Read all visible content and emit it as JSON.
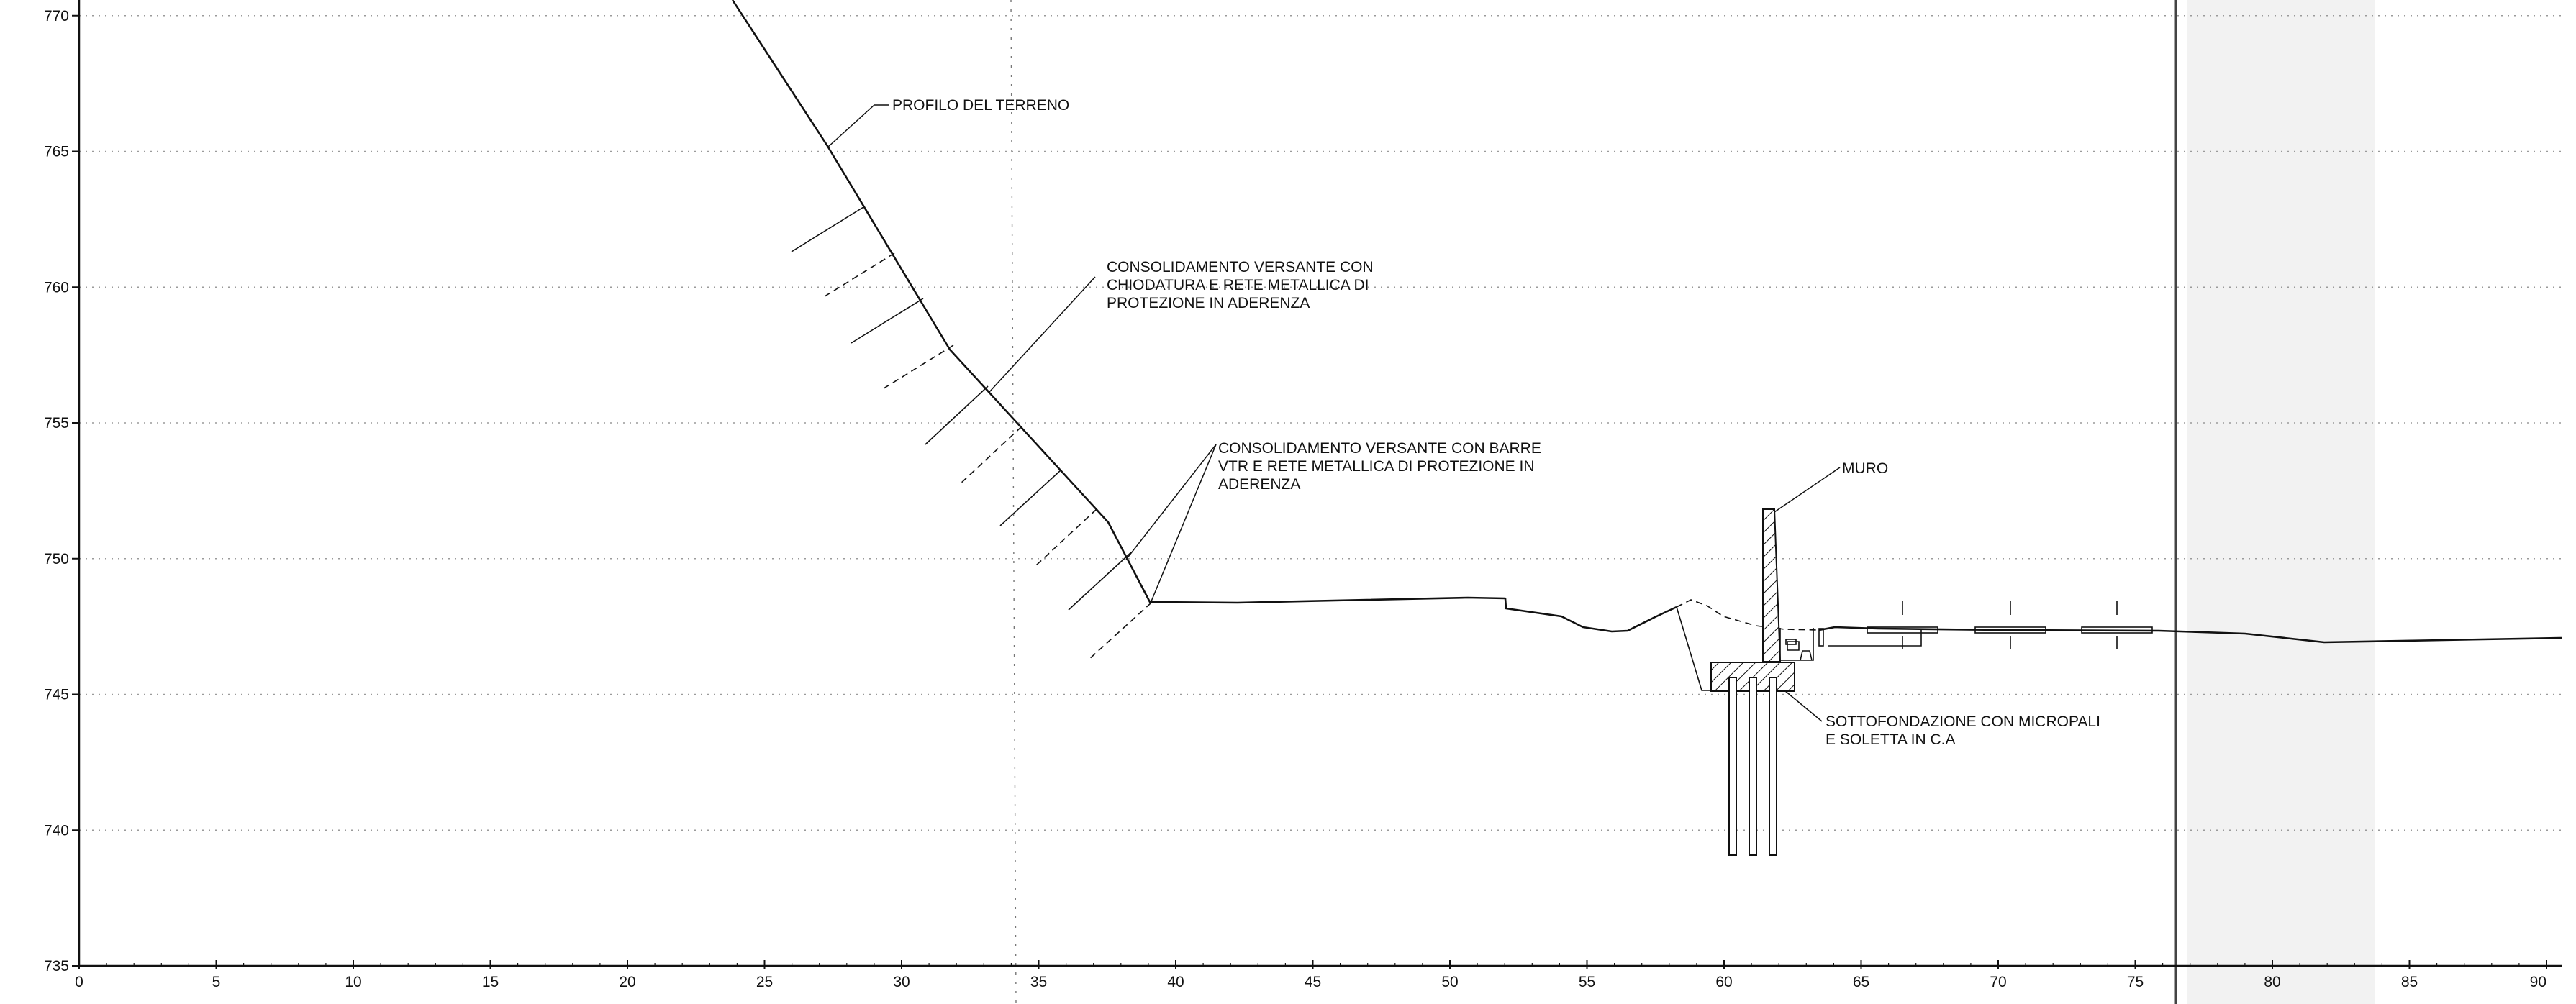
{
  "axes": {
    "y_ticks": [
      {
        "value": 770,
        "label": "770"
      },
      {
        "value": 765,
        "label": "765"
      },
      {
        "value": 760,
        "label": "760"
      },
      {
        "value": 755,
        "label": "755"
      },
      {
        "value": 750,
        "label": "750"
      },
      {
        "value": 745,
        "label": "745"
      },
      {
        "value": 740,
        "label": "740"
      },
      {
        "value": 735,
        "label": "735"
      }
    ],
    "x_ticks": [
      {
        "value": 0,
        "label": "0"
      },
      {
        "value": 5,
        "label": "5"
      },
      {
        "value": 10,
        "label": "10"
      },
      {
        "value": 15,
        "label": "15"
      },
      {
        "value": 20,
        "label": "20"
      },
      {
        "value": 25,
        "label": "25"
      },
      {
        "value": 30,
        "label": "30"
      },
      {
        "value": 35,
        "label": "35"
      },
      {
        "value": 40,
        "label": "40"
      },
      {
        "value": 45,
        "label": "45"
      },
      {
        "value": 50,
        "label": "50"
      },
      {
        "value": 55,
        "label": "55"
      },
      {
        "value": 60,
        "label": "60"
      },
      {
        "value": 65,
        "label": "65"
      },
      {
        "value": 70,
        "label": "70"
      },
      {
        "value": 75,
        "label": "75"
      },
      {
        "value": 80,
        "label": "80"
      },
      {
        "value": 85,
        "label": "85"
      },
      {
        "value": 90,
        "label": "90"
      }
    ]
  },
  "annotations": {
    "profilo": [
      "PROFILO DEL TERRENO"
    ],
    "chiodatura": [
      "CONSOLIDAMENTO VERSANTE CON",
      "CHIODATURA E RETE METALLICA DI",
      "PROTEZIONE IN ADERENZA"
    ],
    "barre_vtr": [
      "CONSOLIDAMENTO VERSANTE CON BARRE",
      "VTR E RETE METALLICA DI PROTEZIONE IN",
      "ADERENZA"
    ],
    "muro": [
      "MURO"
    ],
    "sottofondazione": [
      "SOTTOFONDAZIONE CON MICROPALI",
      "E SOLETTA IN C.A"
    ]
  },
  "colors": {
    "ink": "#111111",
    "grid": "#9a9a9a",
    "paper": "#ffffff"
  }
}
